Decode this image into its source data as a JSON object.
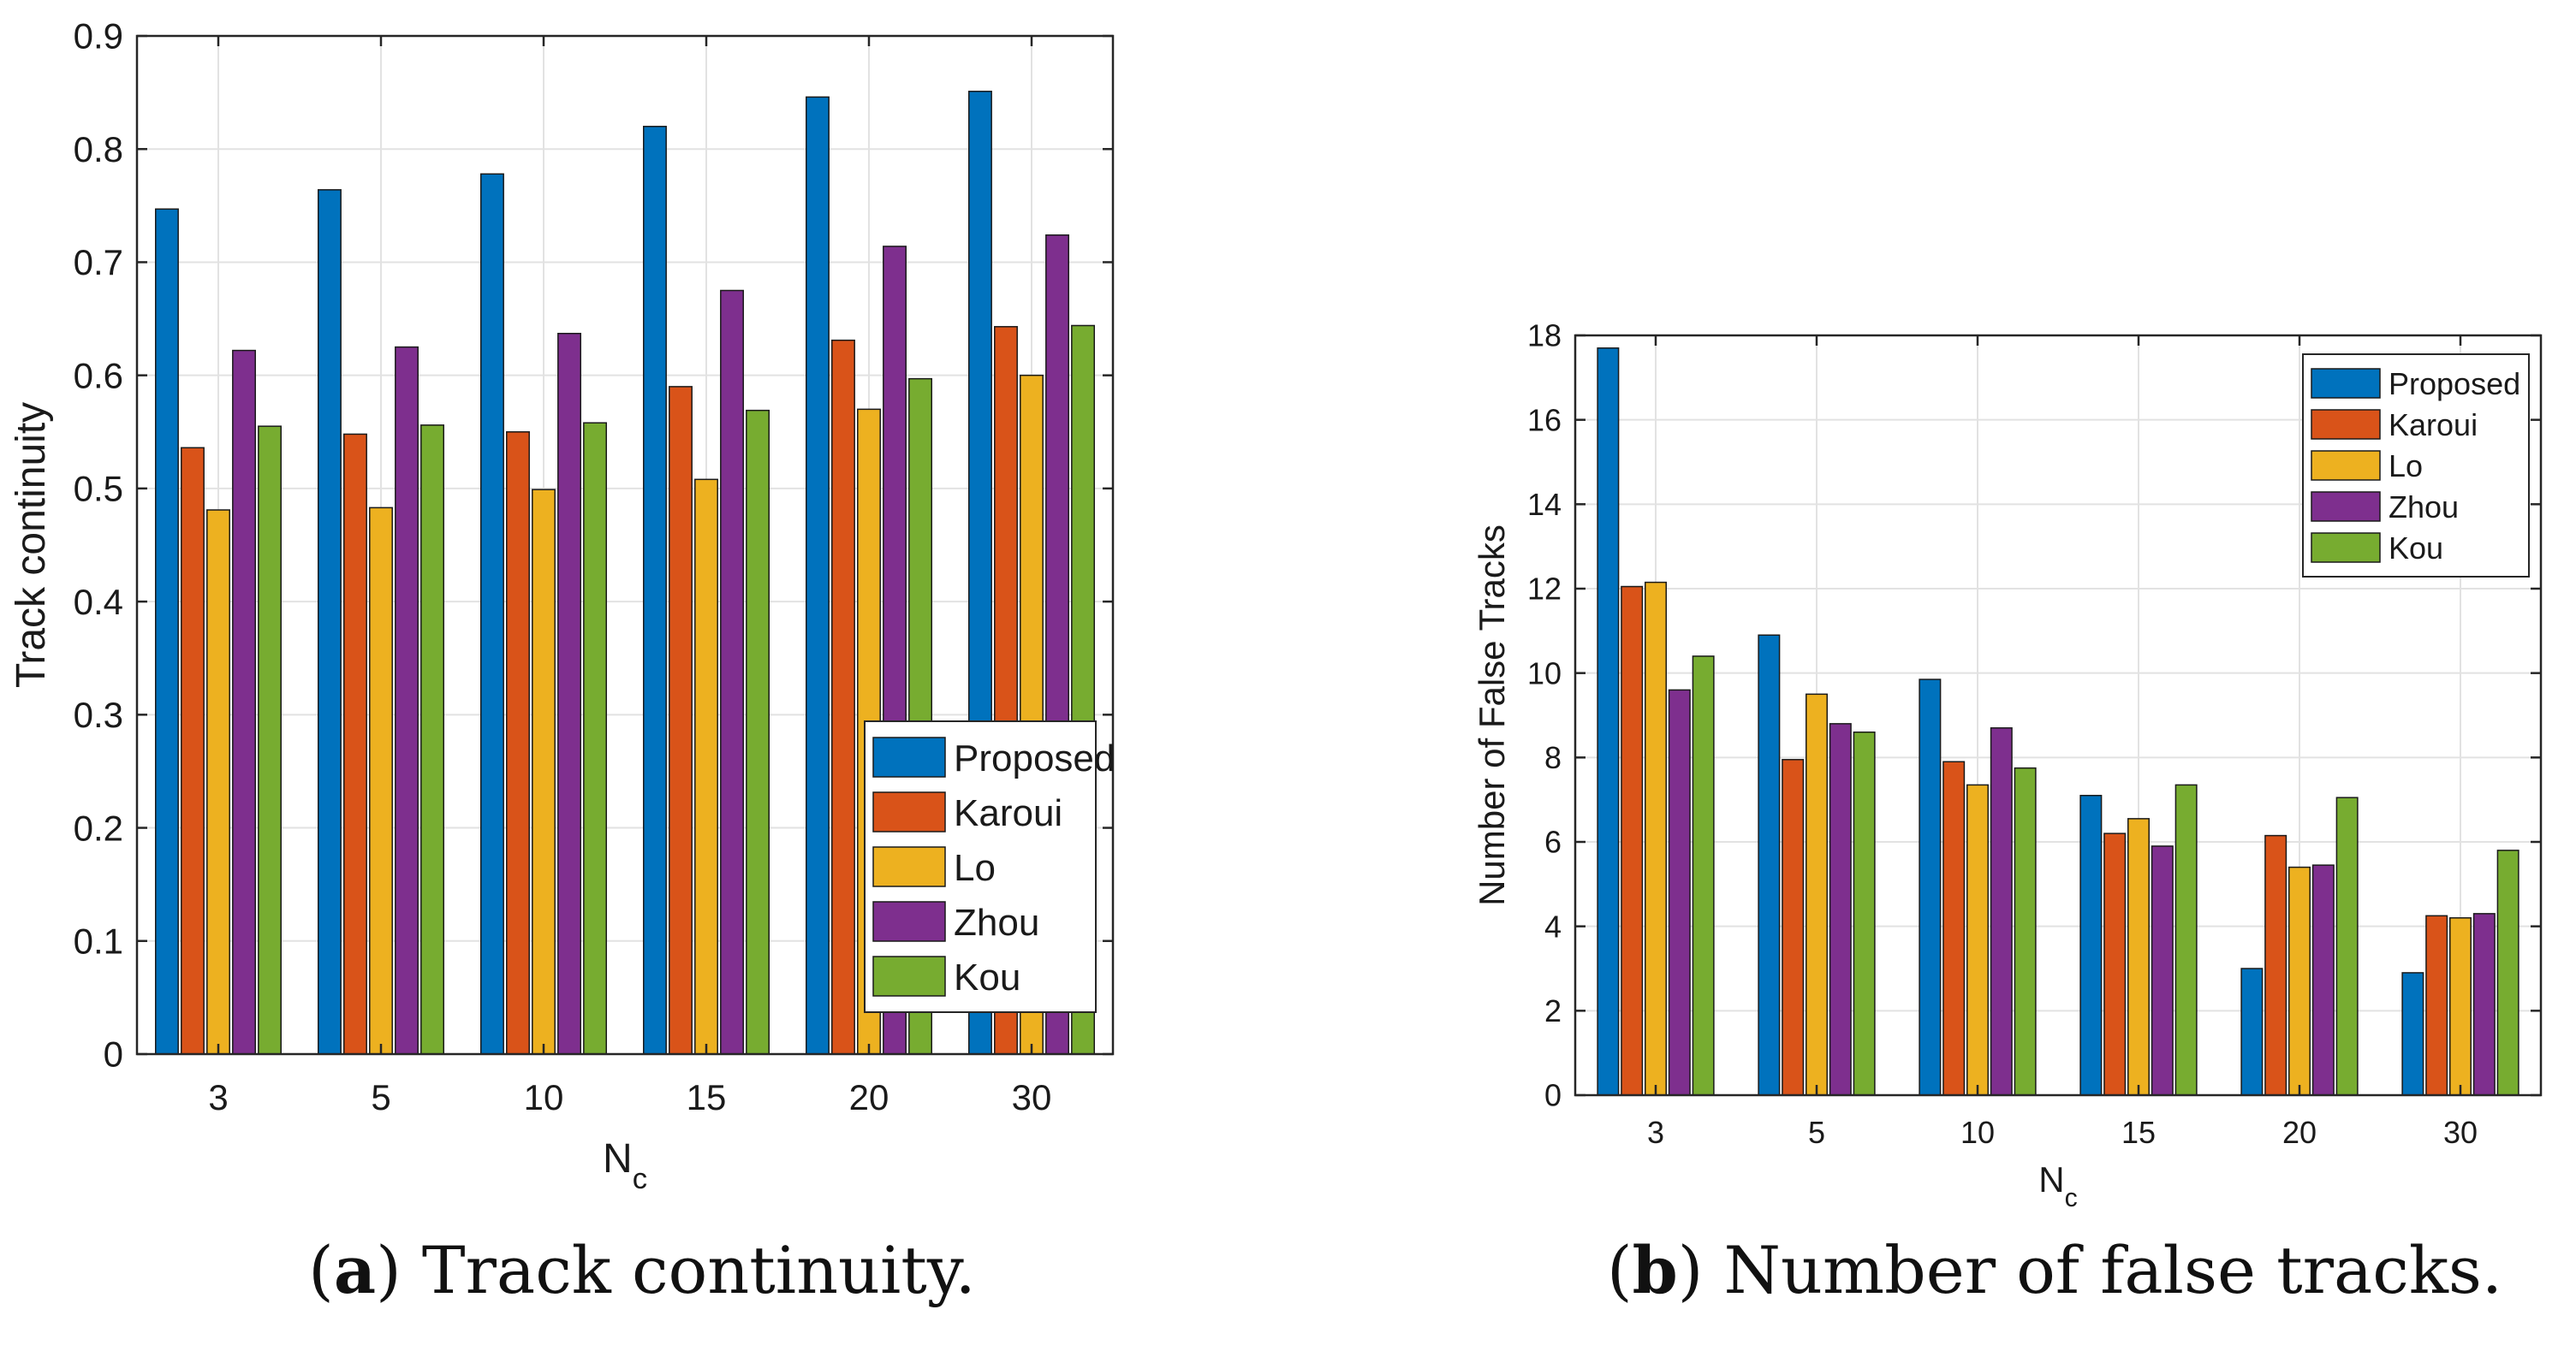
{
  "chart_data": [
    {
      "type": "bar",
      "panel_label": "a",
      "caption_text": " Track continuity.",
      "xlabel": "N",
      "xlabel_sub": "c",
      "ylabel": "Track continuity",
      "categories": [
        "3",
        "5",
        "10",
        "15",
        "20",
        "30"
      ],
      "ylim": [
        0,
        0.9
      ],
      "yticks": [
        0,
        0.1,
        0.2,
        0.3,
        0.4,
        0.5,
        0.6,
        0.7,
        0.8,
        0.9
      ],
      "ytick_labels": [
        "0",
        "0.1",
        "0.2",
        "0.3",
        "0.4",
        "0.5",
        "0.6",
        "0.7",
        "0.8",
        "0.9"
      ],
      "grid": true,
      "legend_position": "bottom-right",
      "series": [
        {
          "name": "Proposed",
          "color": "#0072BD",
          "values": [
            0.747,
            0.764,
            0.778,
            0.82,
            0.846,
            0.851
          ]
        },
        {
          "name": "Karoui",
          "color": "#D95319",
          "values": [
            0.536,
            0.548,
            0.55,
            0.59,
            0.631,
            0.643
          ]
        },
        {
          "name": "Lo",
          "color": "#EDB120",
          "values": [
            0.481,
            0.483,
            0.499,
            0.508,
            0.57,
            0.6
          ]
        },
        {
          "name": "Zhou",
          "color": "#7E2F8E",
          "values": [
            0.622,
            0.625,
            0.637,
            0.675,
            0.714,
            0.724
          ]
        },
        {
          "name": "Kou",
          "color": "#77AC30",
          "values": [
            0.555,
            0.556,
            0.558,
            0.569,
            0.597,
            0.644
          ]
        }
      ]
    },
    {
      "type": "bar",
      "panel_label": "b",
      "caption_text": " Number of false tracks.",
      "xlabel": "N",
      "xlabel_sub": "c",
      "ylabel": "Number of False Tracks",
      "categories": [
        "3",
        "5",
        "10",
        "15",
        "20",
        "30"
      ],
      "ylim": [
        0,
        18
      ],
      "yticks": [
        0,
        2,
        4,
        6,
        8,
        10,
        12,
        14,
        16,
        18
      ],
      "ytick_labels": [
        "0",
        "2",
        "4",
        "6",
        "8",
        "10",
        "12",
        "14",
        "16",
        "18"
      ],
      "grid": true,
      "legend_position": "top-right",
      "series": [
        {
          "name": "Proposed",
          "color": "#0072BD",
          "values": [
            17.7,
            10.9,
            9.85,
            7.1,
            3.0,
            2.9
          ]
        },
        {
          "name": "Karoui",
          "color": "#D95319",
          "values": [
            12.05,
            7.95,
            7.9,
            6.2,
            6.15,
            4.25
          ]
        },
        {
          "name": "Lo",
          "color": "#EDB120",
          "values": [
            12.15,
            9.5,
            7.35,
            6.55,
            5.4,
            4.2
          ]
        },
        {
          "name": "Zhou",
          "color": "#7E2F8E",
          "values": [
            9.6,
            8.8,
            8.7,
            5.9,
            5.45,
            4.3
          ]
        },
        {
          "name": "Kou",
          "color": "#77AC30",
          "values": [
            10.4,
            8.6,
            7.75,
            7.35,
            7.05,
            5.8
          ]
        }
      ]
    }
  ]
}
